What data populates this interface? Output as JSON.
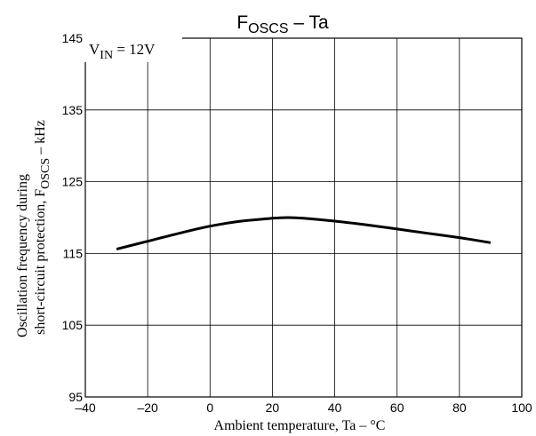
{
  "chart_data": {
    "type": "line",
    "title": {
      "main": "F",
      "sub": "OSCS",
      "suffix": " – Ta"
    },
    "xlabel": "Ambient temperature, Ta  –  °C",
    "ylabel": {
      "line1": "Oscillation frequency during",
      "line2_prefix": "short-circuit protection, F",
      "line2_sub": "OSCS",
      "line2_suffix": "  –  kHz"
    },
    "annotation": {
      "prefix": "V",
      "sub": "IN",
      "suffix": " = 12V"
    },
    "xlim": [
      -40,
      100
    ],
    "ylim": [
      95,
      145
    ],
    "x_ticks": [
      -40,
      -20,
      0,
      20,
      40,
      60,
      80,
      100
    ],
    "y_ticks": [
      95,
      105,
      115,
      125,
      135,
      145
    ],
    "x_tick_labels": [
      "–40",
      "–20",
      "0",
      "20",
      "40",
      "60",
      "80",
      "100"
    ],
    "y_tick_labels": [
      "95",
      "105",
      "115",
      "125",
      "135",
      "145"
    ],
    "grid": true,
    "series": [
      {
        "x": [
          -30,
          -20,
          -10,
          0,
          10,
          20,
          25,
          30,
          40,
          50,
          60,
          70,
          80,
          90
        ],
        "y": [
          115.6,
          116.7,
          117.8,
          118.8,
          119.5,
          119.9,
          120.0,
          119.9,
          119.5,
          119.0,
          118.4,
          117.8,
          117.2,
          116.5
        ],
        "color": "#000000"
      }
    ]
  }
}
